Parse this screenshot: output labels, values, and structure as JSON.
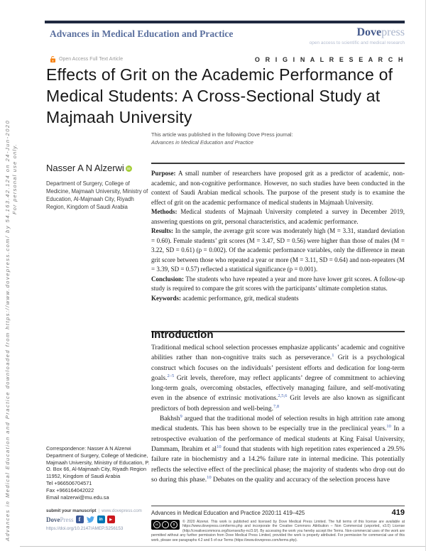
{
  "sidebar": {
    "download_note": "Advances in Medical Education and Practice downloaded from https://www.dovepress.com/ by 54.163.42.124 on 24-Jun-2020",
    "personal_use": "For personal use only."
  },
  "header": {
    "journal_title": "Advances in Medical Education and Practice",
    "brand": {
      "dove": "Dove",
      "press": "press"
    },
    "tagline": "open access to scientific and medical research",
    "open_access_label": "Open Access Full Text Article",
    "article_type": "O R I G I N A L   R E S E A R C H"
  },
  "article": {
    "title": "Effects of Grit on the Academic Performance of Medical Students: A Cross-Sectional Study at Majmaah University",
    "published_in": "This article was published in the following Dove Press journal:",
    "journal_name": "Advances in Medical Education and Practice",
    "author": "Nasser A N Alzerwi",
    "affiliation": "Department of Surgery, College of Medicine, Majmaah University, Ministry of Education, Al-Majmaah City, Riyadh Region, Kingdom of Saudi Arabia"
  },
  "abstract": {
    "sections": [
      {
        "label": "Purpose:",
        "text": "A small number of researchers have proposed grit as a predictor of academic, non-academic, and non-cognitive performance. However, no such studies have been conducted in the context of Saudi Arabian medical schools. The purpose of the present study is to examine the effect of grit on the academic performance of medical students in Majmaah University."
      },
      {
        "label": "Methods:",
        "text": "Medical students of Majmaah University completed a survey in December 2019, answering questions on grit, personal characteristics, and academic performance."
      },
      {
        "label": "Results:",
        "text": "In the sample, the average grit score was moderately high (M = 3.31, standard deviation = 0.60). Female students’ grit scores (M = 3.47, SD = 0.56) were higher than those of males (M = 3.22, SD = 0.61) (p = 0.002). Of the academic performance variables, only the difference in mean grit score between those who repeated a year or more (M = 3.11, SD = 0.64) and non-repeaters (M = 3.39, SD = 0.57) reflected a statistical significance (p = 0.001)."
      },
      {
        "label": "Conclusion:",
        "text": "The students who have repeated a year and more have lower grit scores. A follow-up study is required to compare the grit scores with the participants’ ultimate completion status."
      },
      {
        "label": "Keywords:",
        "text": "academic performance, grit, medical students"
      }
    ]
  },
  "intro": {
    "heading": "Introduction",
    "paragraphs": [
      [
        {
          "t": "Traditional medical school selection processes emphasize applicants’ academic and cognitive abilities rather than non-cognitive traits such as perseverance."
        },
        {
          "s": "1"
        },
        {
          "t": " Grit is a psychological construct which focuses on the individuals’ persistent efforts and dedication for long-term goals."
        },
        {
          "s": "2–5"
        },
        {
          "t": " Grit levels, therefore, may reflect applicants’ degree of commitment to achieving long-term goals, overcoming obstacles, effectively managing failure, and self-motivating even in the absence of extrinsic motivations."
        },
        {
          "s": "2,5,6"
        },
        {
          "t": " Grit levels are also known as significant predictors of both depression and well-being."
        },
        {
          "s": "7,8"
        }
      ],
      [
        {
          "t": "Bakhsh"
        },
        {
          "s": "9"
        },
        {
          "t": " argued that the traditional model of selection results in high attrition rate among medical students. This has been shown to be especially true in the preclinical years."
        },
        {
          "s": "10"
        },
        {
          "t": " In a retrospective evaluation of the performance of medical students at King Faisal University, Dammam, Ibrahim et al"
        },
        {
          "s": "10"
        },
        {
          "t": " found that students with high repetition rates experienced a 29.5% failure rate in biochemistry and a 14.2% failure rate in internal medicine. This potentially reflects the selective effect of the preclinical phase; the majority of students who drop out do so during this phase."
        },
        {
          "s": "10"
        },
        {
          "t": " Debates on the quality and accuracy of the selection process have"
        }
      ]
    ]
  },
  "correspondence": {
    "title": "Correspondence: Nasser A N Alzerwi",
    "address": "Department of Surgery, College of Medicine, Majmaah University, Ministry of Education, P. O. Box 66, Al-Majmaah City, Riyadh Region 11952, Kingdom of Saudi Arabia",
    "tel": "Tel +966506704571",
    "fax": "Fax +966164042022",
    "email": "Email nalzerwi@mu.edu.sa"
  },
  "footer": {
    "submit_label": "submit your manuscript",
    "submit_url": "www.dovepress.com",
    "brand_dove": "Dove",
    "brand_press": "Press",
    "doi": "https://doi.org/10.2147/AMEP.S256153",
    "citation": "Advances in Medical Education and Practice 2020:11 419–425",
    "page_number": "419",
    "license_text": "© 2020 Alzerwi. This work is published and licensed by Dove Medical Press Limited. The full terms of this license are available at https://www.dovepress.com/terms.php and incorporate the Creative Commons Attribution – Non Commercial (unported, v3.0) License (http://creativecommons.org/licenses/by-nc/3.0/). By accessing the work you hereby accept the Terms. Non-commercial uses of the work are permitted without any further permission from Dove Medical Press Limited, provided the work is properly attributed. For permission for commercial use of this work, please see paragraphs 4.2 and 5 of our Terms (https://www.dovepress.com/terms.php)."
  },
  "icons": {
    "open_access": "open-lock-icon",
    "orcid": "orcid-id-icon",
    "social": [
      "facebook-icon",
      "twitter-icon",
      "linkedin-icon",
      "youtube-icon"
    ],
    "license": "cc-by-nc-badge"
  },
  "colors": {
    "open_access_orange": "#f68212",
    "orcid_green": "#a6ce39",
    "reference_link_blue": "#3a5dae",
    "header_blue": "#5a6f9e",
    "facebook": "#3b5998",
    "twitter": "#55acee",
    "linkedin": "#0077b5",
    "youtube": "#cc181e"
  }
}
